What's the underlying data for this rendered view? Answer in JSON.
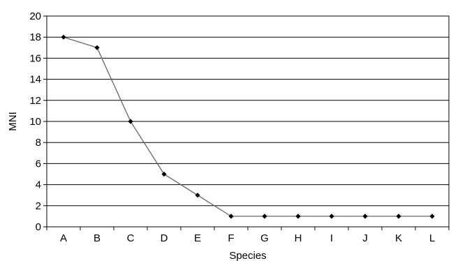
{
  "chart_data": {
    "type": "line",
    "title": "",
    "xlabel": "Species",
    "ylabel": "MNI",
    "categories": [
      "A",
      "B",
      "C",
      "D",
      "E",
      "F",
      "G",
      "H",
      "I",
      "J",
      "K",
      "L"
    ],
    "series": [
      {
        "values": [
          18,
          17,
          10,
          5,
          3,
          1,
          1,
          1,
          1,
          1,
          1,
          1
        ]
      }
    ],
    "ylim": [
      0,
      20
    ],
    "yticks": [
      0,
      2,
      4,
      6,
      8,
      10,
      12,
      14,
      16,
      18,
      20
    ],
    "grid": "horizontal",
    "legend": "none",
    "colors": {
      "line": "#666666",
      "marker": "#000000",
      "grid": "#000000"
    }
  }
}
